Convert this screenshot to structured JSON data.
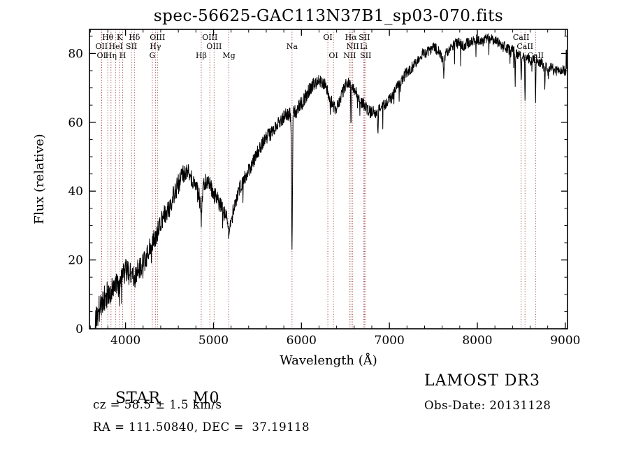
{
  "title": "spec-56625-GAC113N37B1_sp03-070.fits",
  "annotations": {
    "object_class": "STAR",
    "object_subclass": "M0",
    "cz_line": "cz = 58.5 ± 1.5 km/s",
    "radec_line": "RA = 111.50840, DEC =  37.19118",
    "survey": "LAMOST DR3",
    "obs_date_line": "Obs-Date: 20131128"
  },
  "chart_data": {
    "type": "line",
    "title": "spec-56625-GAC113N37B1_sp03-070.fits",
    "xlabel": "Wavelength (Å)",
    "ylabel": "Flux (relative)",
    "xlim": [
      3590,
      9025
    ],
    "ylim": [
      0,
      87
    ],
    "xticks": [
      4000,
      5000,
      6000,
      7000,
      8000,
      9000
    ],
    "yticks": [
      0,
      20,
      40,
      60,
      80
    ],
    "x_minor_step": 200,
    "y_minor_step": 5,
    "grid": false,
    "legend": "none",
    "line_color": "#000000",
    "marker_color": "#a04040",
    "spectrum": {
      "wl_range": [
        3655,
        9020
      ],
      "wl_step": 3,
      "noise_seed": 20131128,
      "spike_chance": 0.02,
      "spike_scale": 6,
      "anchors": [
        [
          3655,
          1
        ],
        [
          3680,
          4
        ],
        [
          3700,
          6
        ],
        [
          3730,
          8
        ],
        [
          3760,
          9
        ],
        [
          3800,
          10
        ],
        [
          3840,
          11
        ],
        [
          3880,
          12
        ],
        [
          3920,
          13
        ],
        [
          3960,
          15
        ],
        [
          4000,
          17
        ],
        [
          4040,
          16
        ],
        [
          4080,
          15
        ],
        [
          4120,
          16
        ],
        [
          4160,
          18
        ],
        [
          4200,
          19
        ],
        [
          4240,
          21
        ],
        [
          4280,
          24
        ],
        [
          4320,
          26
        ],
        [
          4360,
          28
        ],
        [
          4400,
          31
        ],
        [
          4440,
          33
        ],
        [
          4480,
          35
        ],
        [
          4520,
          37
        ],
        [
          4560,
          40
        ],
        [
          4600,
          42
        ],
        [
          4640,
          44
        ],
        [
          4680,
          46
        ],
        [
          4720,
          45
        ],
        [
          4760,
          43
        ],
        [
          4800,
          41
        ],
        [
          4840,
          38
        ],
        [
          4861,
          35
        ],
        [
          4880,
          40
        ],
        [
          4900,
          42
        ],
        [
          4920,
          43
        ],
        [
          4950,
          42
        ],
        [
          4980,
          41
        ],
        [
          5010,
          39
        ],
        [
          5040,
          38
        ],
        [
          5080,
          36
        ],
        [
          5120,
          34
        ],
        [
          5160,
          31
        ],
        [
          5185,
          30
        ],
        [
          5210,
          32
        ],
        [
          5240,
          36
        ],
        [
          5270,
          39
        ],
        [
          5300,
          41
        ],
        [
          5340,
          43
        ],
        [
          5380,
          45
        ],
        [
          5420,
          47
        ],
        [
          5460,
          49
        ],
        [
          5500,
          51
        ],
        [
          5540,
          53
        ],
        [
          5580,
          55
        ],
        [
          5620,
          56
        ],
        [
          5660,
          57
        ],
        [
          5700,
          58
        ],
        [
          5740,
          60
        ],
        [
          5780,
          61
        ],
        [
          5820,
          62
        ],
        [
          5860,
          62
        ],
        [
          5900,
          63
        ],
        [
          5940,
          63
        ],
        [
          5980,
          65
        ],
        [
          6020,
          66
        ],
        [
          6060,
          68
        ],
        [
          6100,
          70
        ],
        [
          6140,
          71
        ],
        [
          6180,
          72
        ],
        [
          6220,
          72
        ],
        [
          6260,
          71
        ],
        [
          6300,
          69
        ],
        [
          6340,
          66
        ],
        [
          6380,
          64
        ],
        [
          6420,
          65
        ],
        [
          6460,
          68
        ],
        [
          6500,
          71
        ],
        [
          6530,
          72
        ],
        [
          6560,
          71
        ],
        [
          6590,
          70
        ],
        [
          6620,
          69
        ],
        [
          6650,
          67
        ],
        [
          6680,
          66
        ],
        [
          6710,
          65
        ],
        [
          6740,
          64
        ],
        [
          6780,
          63
        ],
        [
          6820,
          63
        ],
        [
          6860,
          63
        ],
        [
          6900,
          64
        ],
        [
          6940,
          65
        ],
        [
          6980,
          66
        ],
        [
          7020,
          67
        ],
        [
          7060,
          69
        ],
        [
          7100,
          71
        ],
        [
          7140,
          72
        ],
        [
          7180,
          74
        ],
        [
          7220,
          75
        ],
        [
          7260,
          76
        ],
        [
          7300,
          77
        ],
        [
          7340,
          79
        ],
        [
          7380,
          80
        ],
        [
          7420,
          80
        ],
        [
          7460,
          81
        ],
        [
          7500,
          82
        ],
        [
          7540,
          81
        ],
        [
          7580,
          80
        ],
        [
          7610,
          78
        ],
        [
          7640,
          80
        ],
        [
          7680,
          81
        ],
        [
          7720,
          82
        ],
        [
          7760,
          83
        ],
        [
          7800,
          83
        ],
        [
          7840,
          82
        ],
        [
          7880,
          83
        ],
        [
          7920,
          83
        ],
        [
          7960,
          84
        ],
        [
          8000,
          84
        ],
        [
          8040,
          83
        ],
        [
          8080,
          84
        ],
        [
          8120,
          85
        ],
        [
          8160,
          84
        ],
        [
          8200,
          84
        ],
        [
          8240,
          83
        ],
        [
          8280,
          82
        ],
        [
          8320,
          82
        ],
        [
          8360,
          81
        ],
        [
          8400,
          81
        ],
        [
          8440,
          80
        ],
        [
          8480,
          80
        ],
        [
          8520,
          79
        ],
        [
          8560,
          79
        ],
        [
          8600,
          78
        ],
        [
          8640,
          78
        ],
        [
          8680,
          78
        ],
        [
          8720,
          77
        ],
        [
          8760,
          77
        ],
        [
          8800,
          76
        ],
        [
          8840,
          76
        ],
        [
          8880,
          75
        ],
        [
          8920,
          75
        ],
        [
          8960,
          75
        ],
        [
          9000,
          75
        ],
        [
          9020,
          75
        ]
      ],
      "noise_profile": [
        [
          3655,
          4.2
        ],
        [
          4200,
          3.2
        ],
        [
          4800,
          2.8
        ],
        [
          5400,
          2.2
        ],
        [
          6000,
          2.0
        ],
        [
          6600,
          1.8
        ],
        [
          7200,
          1.6
        ],
        [
          8000,
          1.5
        ],
        [
          9020,
          1.6
        ]
      ],
      "absorption_features": [
        {
          "wl": 3933,
          "depth": 4,
          "fwhm": 10
        },
        {
          "wl": 4101,
          "depth": 3,
          "fwhm": 8
        },
        {
          "wl": 4861,
          "depth": 4,
          "fwhm": 8
        },
        {
          "wl": 5175,
          "depth": 5,
          "fwhm": 10
        },
        {
          "wl": 5893,
          "depth": 41,
          "fwhm": 12
        },
        {
          "wl": 6563,
          "depth": 13,
          "fwhm": 7
        },
        {
          "wl": 6870,
          "depth": 6,
          "fwhm": 9
        },
        {
          "wl": 7620,
          "depth": 5,
          "fwhm": 9
        },
        {
          "wl": 8430,
          "depth": 9,
          "fwhm": 6
        },
        {
          "wl": 8498,
          "depth": 9,
          "fwhm": 7
        },
        {
          "wl": 8542,
          "depth": 13,
          "fwhm": 7
        },
        {
          "wl": 8662,
          "depth": 11,
          "fwhm": 7
        },
        {
          "wl": 8767,
          "depth": 7,
          "fwhm": 6
        }
      ],
      "emission_spikes": [
        {
          "wl": 9012,
          "height": 9,
          "fwhm": 4
        }
      ]
    },
    "line_markers": [
      {
        "label": "Hθ",
        "wl": 3798,
        "row": 1
      },
      {
        "label": "K",
        "wl": 3933,
        "row": 1
      },
      {
        "label": "Hδ",
        "wl": 4101,
        "row": 1
      },
      {
        "label": "OIII",
        "wl": 4363,
        "row": 1
      },
      {
        "label": "OIII",
        "wl": 4959,
        "row": 1
      },
      {
        "label": "OI",
        "wl": 6300,
        "row": 1
      },
      {
        "label": "Hα",
        "wl": 6563,
        "row": 1
      },
      {
        "label": "SII",
        "wl": 6716,
        "row": 1
      },
      {
        "label": "CaII",
        "wl": 8498,
        "row": 1
      },
      {
        "label": "OII",
        "wl": 3727,
        "row": 2
      },
      {
        "label": "HeI",
        "wl": 3889,
        "row": 2
      },
      {
        "label": "SII",
        "wl": 4068,
        "row": 2
      },
      {
        "label": "Hγ",
        "wl": 4340,
        "row": 2
      },
      {
        "label": "OIII",
        "wl": 5007,
        "row": 2
      },
      {
        "label": "Na",
        "wl": 5893,
        "row": 2
      },
      {
        "label": "NII",
        "wl": 6583,
        "row": 2
      },
      {
        "label": "Li",
        "wl": 6708,
        "row": 2
      },
      {
        "label": "CaII",
        "wl": 8542,
        "row": 2
      },
      {
        "label": "OI",
        "wl": 3727,
        "row": 3
      },
      {
        "label": "Hη",
        "wl": 3835,
        "row": 3
      },
      {
        "label": "H",
        "wl": 3968,
        "row": 3
      },
      {
        "label": "G",
        "wl": 4305,
        "row": 3
      },
      {
        "label": "Hβ",
        "wl": 4861,
        "row": 3
      },
      {
        "label": "Mg",
        "wl": 5175,
        "row": 3
      },
      {
        "label": "OI",
        "wl": 6364,
        "row": 3
      },
      {
        "label": "NII",
        "wl": 6548,
        "row": 3
      },
      {
        "label": "SII",
        "wl": 6731,
        "row": 3
      },
      {
        "label": "CaII",
        "wl": 8662,
        "row": 3
      }
    ]
  }
}
